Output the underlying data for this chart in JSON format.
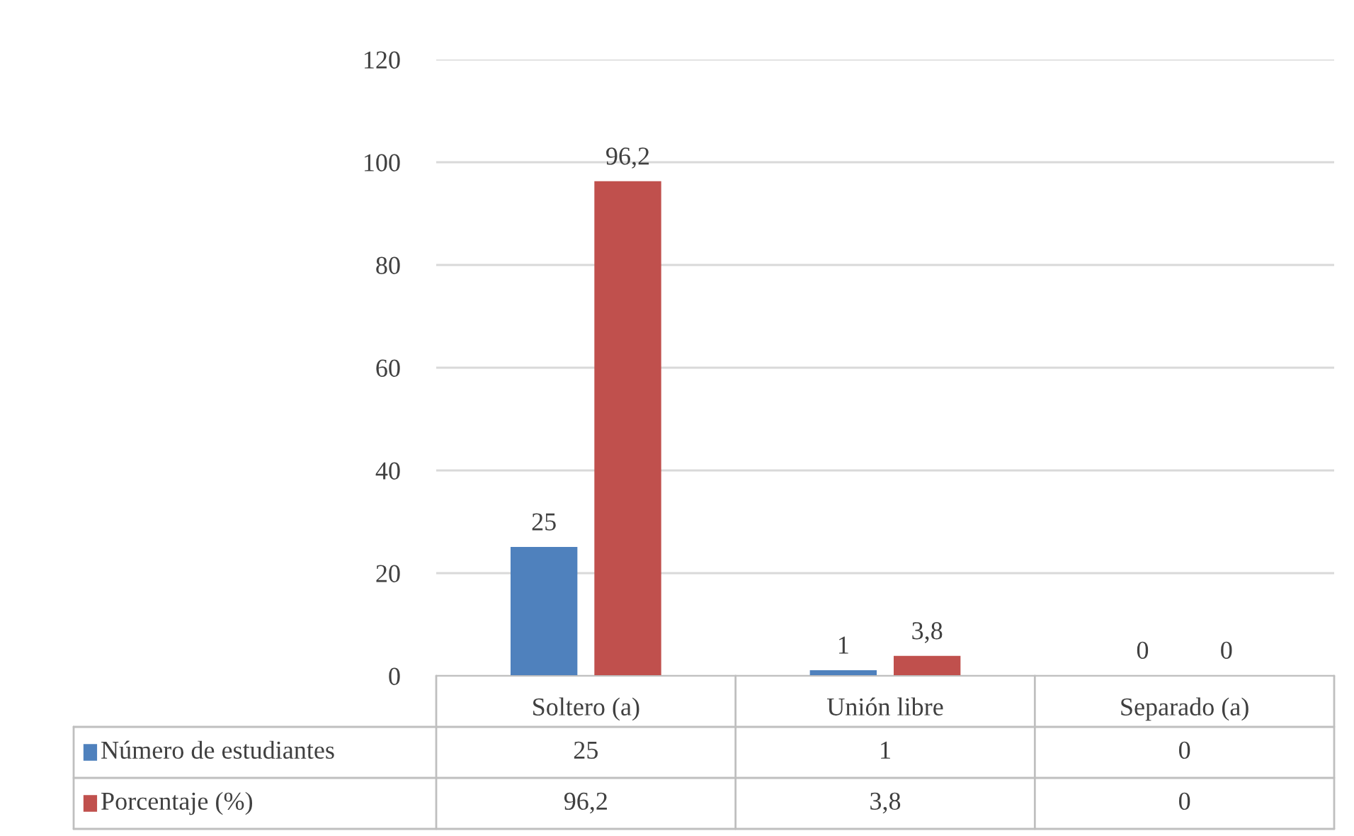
{
  "chart_data": {
    "type": "bar",
    "categories": [
      "Soltero (a)",
      "Unión libre",
      "Separado (a)"
    ],
    "series": [
      {
        "name": "Número de estudiantes",
        "color": "#4f81bd",
        "values": [
          25,
          1,
          0
        ],
        "value_labels": [
          "25",
          "1",
          "0"
        ]
      },
      {
        "name": "Porcentaje (%)",
        "color": "#c0504d",
        "values": [
          96.2,
          3.8,
          0
        ],
        "value_labels": [
          "96,2",
          "3,8",
          "0"
        ]
      }
    ],
    "ylim": [
      0,
      120
    ],
    "yticks": [
      0,
      20,
      40,
      60,
      80,
      100,
      120
    ],
    "grid": "y",
    "legend": "bottom"
  }
}
